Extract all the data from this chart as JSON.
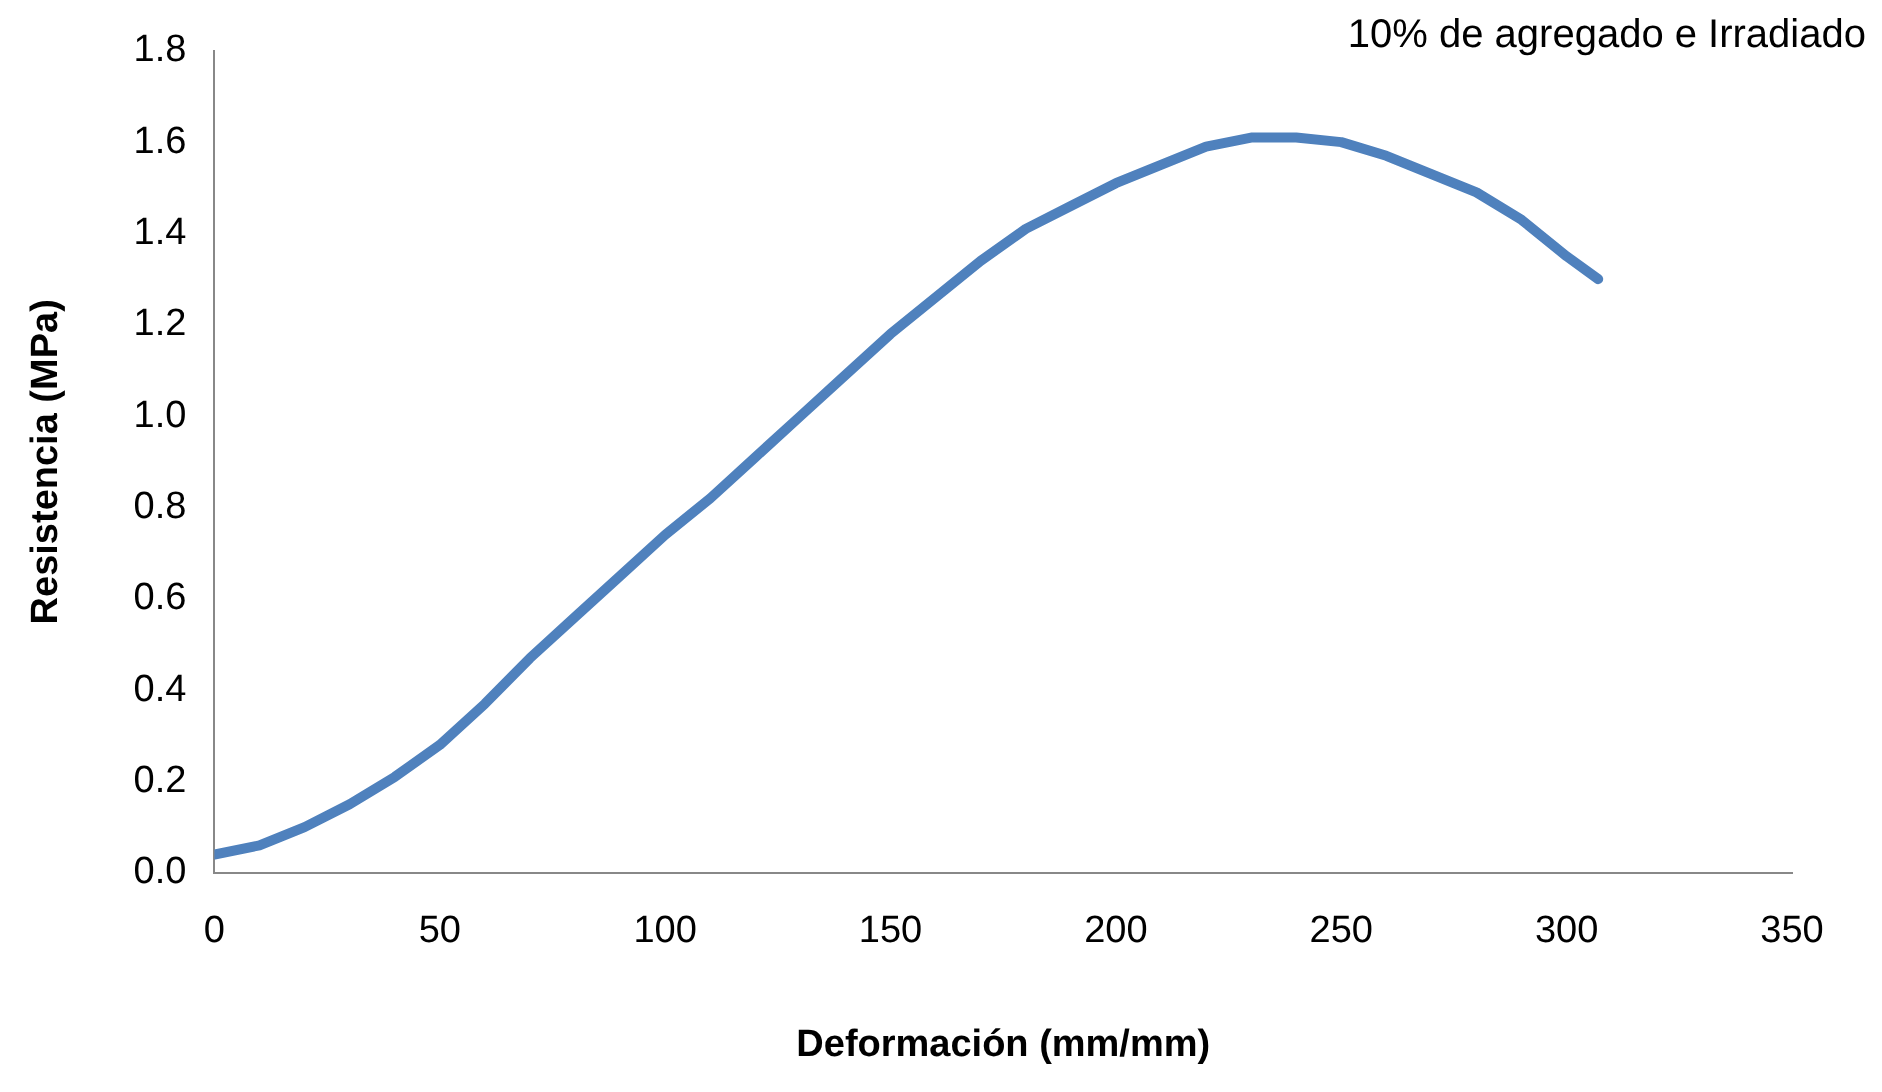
{
  "chart_data": {
    "type": "line",
    "title": "10% de agregado e Irradiado",
    "xlabel": "Deformación (mm/mm)",
    "ylabel": "Resistencia (MPa)",
    "x": [
      0,
      10,
      20,
      30,
      40,
      50,
      60,
      70,
      80,
      90,
      100,
      110,
      120,
      130,
      140,
      150,
      160,
      170,
      180,
      190,
      200,
      210,
      220,
      230,
      240,
      250,
      260,
      270,
      280,
      290,
      300,
      307
    ],
    "series": [
      {
        "color": "#4f81bd",
        "values": [
          0.04,
          0.06,
          0.1,
          0.15,
          0.21,
          0.28,
          0.37,
          0.47,
          0.56,
          0.65,
          0.74,
          0.82,
          0.91,
          1.0,
          1.09,
          1.18,
          1.26,
          1.34,
          1.41,
          1.46,
          1.51,
          1.55,
          1.59,
          1.61,
          1.61,
          1.6,
          1.57,
          1.53,
          1.49,
          1.43,
          1.35,
          1.3
        ]
      }
    ],
    "xlim": [
      0,
      350
    ],
    "xticks": [
      0,
      50,
      100,
      150,
      200,
      250,
      300,
      350
    ],
    "ylim": [
      0,
      1.8
    ],
    "yticks": [
      {
        "value": 0,
        "label": "0.0"
      },
      {
        "value": 0.2,
        "label": "0.2"
      },
      {
        "value": 0.4,
        "label": "0.4"
      },
      {
        "value": 0.6,
        "label": "0.6"
      },
      {
        "value": 0.8,
        "label": "0.8"
      },
      {
        "value": 1,
        "label": "1.0"
      },
      {
        "value": 1.2,
        "label": "1.2"
      },
      {
        "value": 1.4,
        "label": "1.4"
      },
      {
        "value": 1.6,
        "label": "1.6"
      },
      {
        "value": 1.8,
        "label": "1.8"
      }
    ],
    "grid": false,
    "legend": false,
    "marker": "none",
    "line_style": "solid"
  }
}
